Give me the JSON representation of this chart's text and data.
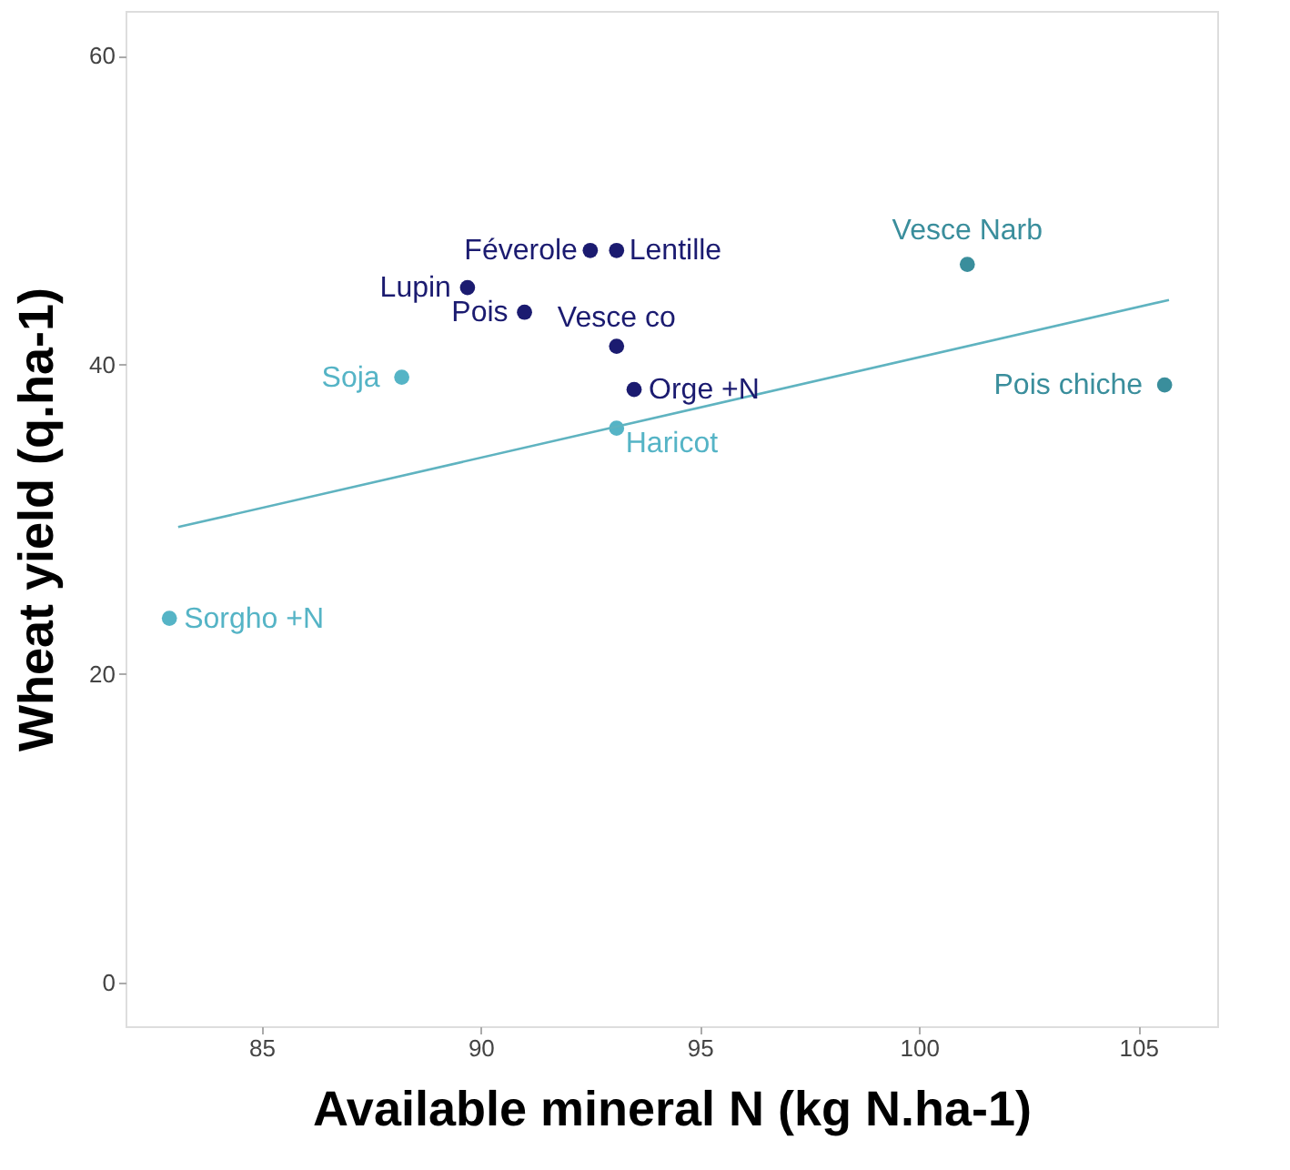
{
  "chart_data": {
    "type": "scatter",
    "xlabel": "Available mineral N (kg N.ha-1)",
    "ylabel": "Wheat yield (q.ha-1)",
    "xlim": [
      81.9,
      106.8
    ],
    "ylim": [
      -2.8,
      62.9
    ],
    "xticks": [
      85,
      90,
      95,
      100,
      105
    ],
    "yticks": [
      0,
      20,
      40,
      60
    ],
    "grid": false,
    "marker": "circle",
    "series": [
      {
        "color": "#1b1b70",
        "x": [
          92.5,
          93.1,
          89.7,
          91.0,
          93.1
        ],
        "values": [
          47.4,
          47.4,
          45.0,
          43.4,
          41.2
        ]
      },
      {
        "color": "#1b1b70",
        "x": [
          93.5
        ],
        "values": [
          38.4
        ]
      },
      {
        "color": "#55b4c6",
        "x": [
          88.2,
          93.1
        ],
        "values": [
          39.2,
          35.9
        ]
      },
      {
        "color": "#55b4c6",
        "x": [
          82.9
        ],
        "values": [
          23.6
        ]
      },
      {
        "color": "#3a8e9c",
        "x": [
          101.1,
          105.6
        ],
        "values": [
          46.5,
          38.7
        ]
      },
      {
        "type": "line",
        "line_style": "solid",
        "marker": "none",
        "color": "#5fb3c0",
        "x": [
          83.1,
          105.7
        ],
        "values": [
          29.5,
          44.2
        ]
      }
    ],
    "annotations": [
      {
        "text": "Féverole",
        "x": 92.5,
        "y": 47.4
      },
      {
        "text": "Lentille",
        "x": 93.1,
        "y": 47.4
      },
      {
        "text": "Lupin",
        "x": 89.7,
        "y": 45.0
      },
      {
        "text": "Pois",
        "x": 91.0,
        "y": 43.4
      },
      {
        "text": "Vesce co",
        "x": 93.1,
        "y": 41.2
      },
      {
        "text": "Orge +N",
        "x": 93.5,
        "y": 38.4
      },
      {
        "text": "Soja",
        "x": 88.2,
        "y": 39.2
      },
      {
        "text": "Haricot",
        "x": 93.1,
        "y": 35.9
      },
      {
        "text": "Vesce Narb",
        "x": 101.1,
        "y": 46.5
      },
      {
        "text": "Pois chiche",
        "x": 105.6,
        "y": 38.7
      },
      {
        "text": "Sorgho +N",
        "x": 82.9,
        "y": 23.6
      }
    ]
  }
}
